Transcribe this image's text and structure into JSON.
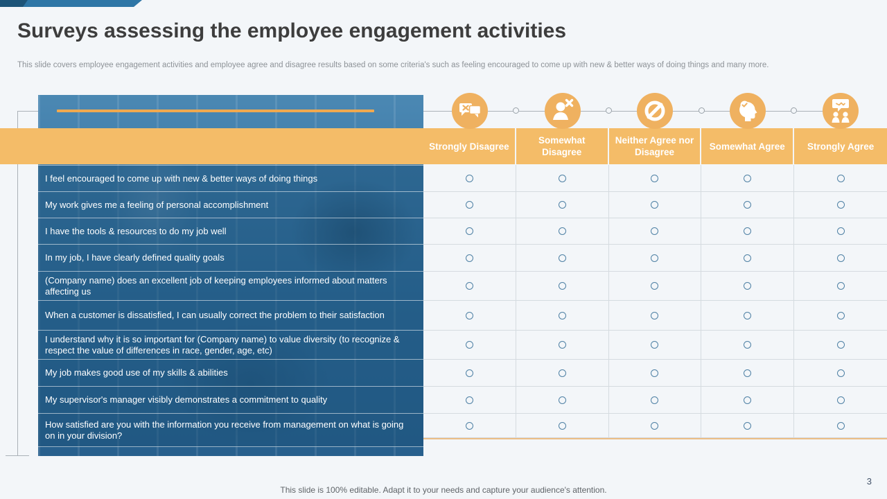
{
  "slide": {
    "title": "Surveys assessing the employee engagement activities",
    "subtitle": "This slide covers employee engagement activities and employee agree and disagree results based on some criteria's such as feeling encouraged to come up with new & better ways of doing things and many more.",
    "footer": "This slide is 100% editable. Adapt it to your needs and capture your audience's attention.",
    "page_number": "3"
  },
  "survey": {
    "scale_columns": [
      {
        "label": "Strongly Disagree",
        "icon": "chat-dislike-icon"
      },
      {
        "label": "Somewhat Disagree",
        "icon": "person-reject-icon"
      },
      {
        "label": "Neither Agree nor Disagree",
        "icon": "prohibition-icon"
      },
      {
        "label": "Somewhat Agree",
        "icon": "head-check-icon"
      },
      {
        "label": "Strongly Agree",
        "icon": "discussion-agreement-icon"
      }
    ],
    "questions": [
      "I feel encouraged to come up with new & better ways of doing things",
      "My work gives me a feeling of personal accomplishment",
      "I have the tools & resources to do my job well",
      "In my job, I have clearly defined quality goals",
      "(Company name) does an excellent job of keeping employees informed about matters affecting us",
      "When a customer is dissatisfied, I can usually correct the problem to their satisfaction",
      "I understand why it is so important for (Company name) to value diversity (to recognize & respect the value of differences in race, gender, age, etc)",
      "My job makes good use of my skills & abilities",
      "My supervisor's manager visibly demonstrates a commitment to quality",
      "How satisfied are you with the information you receive from management on what is going on in your division?"
    ],
    "radio_state": "unselected"
  },
  "colors": {
    "accent_orange": "#F4BC68",
    "accent_orange_line": "#F0A94F",
    "icon_orange": "#EFB160",
    "brand_blue": "#2E76A6",
    "dark_blue": "#1D5478",
    "question_overlay_blue": "#2D6D9A",
    "background": "#F3F6F9",
    "radio_outline": "#4E80A4",
    "timeline_gray": "#AAB1B7"
  }
}
